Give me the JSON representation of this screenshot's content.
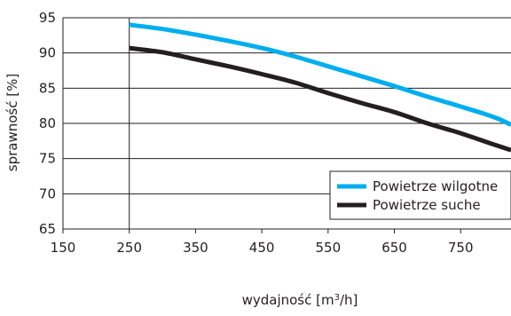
{
  "chart_data": {
    "type": "line",
    "title": "",
    "xlabel": "wydajność [m³/h]",
    "ylabel": "sprawność  [%]",
    "xlim": [
      150,
      826
    ],
    "ylim": [
      65,
      95
    ],
    "x_ticks": [
      150,
      250,
      350,
      450,
      550,
      650,
      750
    ],
    "y_ticks": [
      65,
      70,
      75,
      80,
      85,
      90,
      95
    ],
    "grid": "horizontal",
    "legend_position": "bottom-right",
    "series": [
      {
        "name": "Powietrze wilgotne",
        "color": "#00aeef",
        "x": [
          250,
          300,
          350,
          400,
          450,
          500,
          550,
          600,
          650,
          700,
          750,
          800,
          826
        ],
        "y": [
          94.0,
          93.4,
          92.6,
          91.7,
          90.7,
          89.5,
          88.1,
          86.7,
          85.3,
          83.8,
          82.4,
          80.9,
          79.8
        ]
      },
      {
        "name": "Powietrze suche",
        "color": "#231f20",
        "x": [
          250,
          300,
          350,
          400,
          450,
          500,
          550,
          600,
          650,
          700,
          750,
          800,
          826
        ],
        "y": [
          90.7,
          90.1,
          89.1,
          88.1,
          87.0,
          85.8,
          84.3,
          82.9,
          81.6,
          80.0,
          78.6,
          77.0,
          76.2
        ]
      }
    ]
  }
}
